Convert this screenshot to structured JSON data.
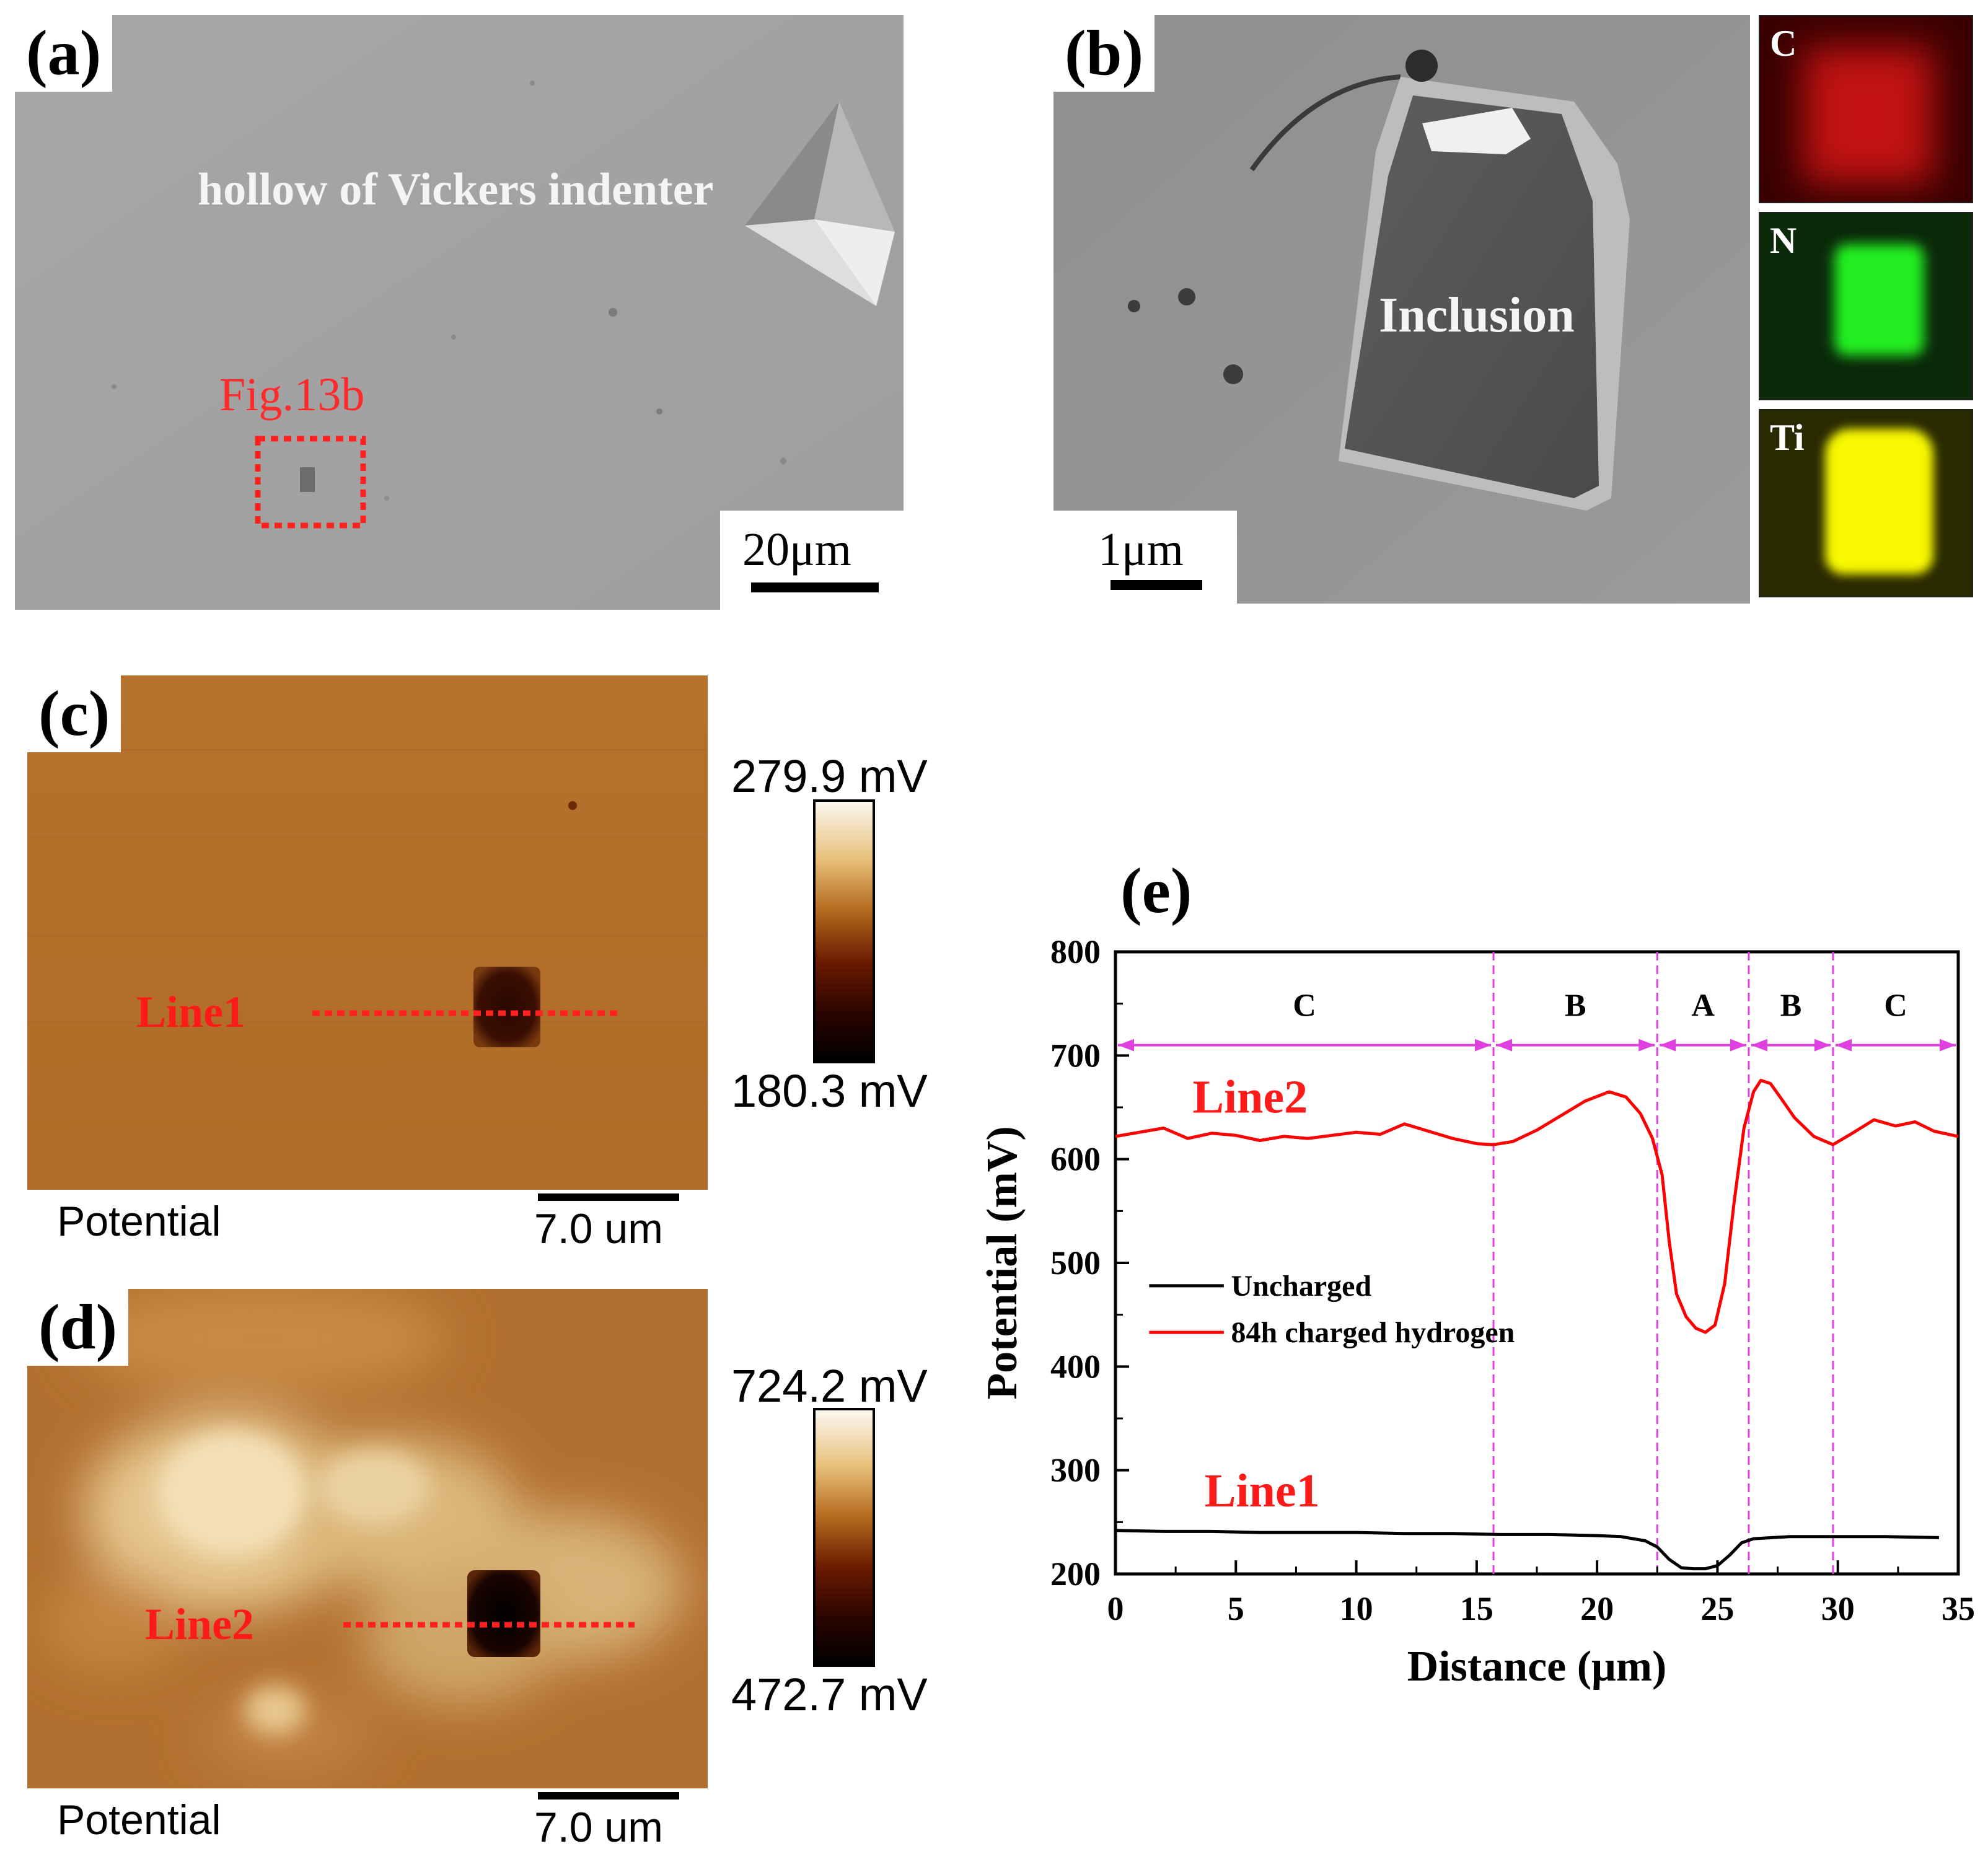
{
  "panels": {
    "a": {
      "label": "(a)",
      "indent_label": "hollow of Vickers indenter",
      "fig_ref": "Fig.13b",
      "scale": "20μm"
    },
    "b": {
      "label": "(b)",
      "inclusion_label": "Inclusion",
      "scale": "1μm",
      "eds_maps": [
        {
          "element": "C",
          "color": "#e01010"
        },
        {
          "element": "N",
          "color": "#20e020"
        },
        {
          "element": "Ti",
          "color": "#f0f000"
        }
      ]
    },
    "c": {
      "label": "(c)",
      "line_label": "Line1",
      "colorbar_max": "279.9 mV",
      "colorbar_min": "180.3 mV",
      "caption": "Potential",
      "scale": "7.0 um"
    },
    "d": {
      "label": "(d)",
      "line_label": "Line2",
      "colorbar_max": "724.2 mV",
      "colorbar_min": "472.7 mV",
      "caption": "Potential",
      "scale": "7.0 um"
    },
    "e": {
      "label": "(e)"
    }
  },
  "chart_data": {
    "type": "line",
    "title": "",
    "xlabel": "Distance (μm)",
    "ylabel": "Potential (mV)",
    "xlim": [
      0,
      35
    ],
    "ylim": [
      200,
      800
    ],
    "xticks": [
      0,
      5,
      10,
      15,
      20,
      25,
      30,
      35
    ],
    "yticks": [
      200,
      300,
      400,
      500,
      600,
      700,
      800
    ],
    "grid": false,
    "legend_position": "middle-left",
    "region_boundaries": [
      15.7,
      22.5,
      26.3,
      29.8
    ],
    "regions": [
      {
        "label": "C",
        "from": 0,
        "to": 15.7
      },
      {
        "label": "B",
        "from": 15.7,
        "to": 22.5
      },
      {
        "label": "A",
        "from": 22.5,
        "to": 26.3
      },
      {
        "label": "B",
        "from": 26.3,
        "to": 29.8
      },
      {
        "label": "C",
        "from": 29.8,
        "to": 35
      }
    ],
    "series": [
      {
        "name": "Uncharged",
        "line_label": "Line1",
        "color": "#000000",
        "x": [
          0,
          2,
          4,
          6,
          8,
          10,
          12,
          14,
          16,
          18,
          20,
          21,
          22,
          22.5,
          23,
          23.5,
          24,
          24.5,
          25,
          25.5,
          26,
          26.5,
          28,
          30,
          32,
          34.2
        ],
        "y": [
          242,
          241,
          241,
          240,
          240,
          240,
          239,
          239,
          238,
          238,
          237,
          236,
          232,
          226,
          214,
          206,
          205,
          205,
          208,
          218,
          230,
          234,
          236,
          236,
          236,
          235
        ]
      },
      {
        "name": "84h charged hydrogen",
        "line_label": "Line2",
        "color": "#ff0000",
        "x": [
          0,
          1,
          2,
          3,
          4,
          5,
          6,
          7,
          8,
          9,
          10,
          11,
          12,
          13,
          14,
          15,
          15.7,
          16.5,
          17.5,
          18.5,
          19.5,
          20.5,
          21.2,
          21.8,
          22.3,
          22.7,
          23.0,
          23.3,
          23.7,
          24.1,
          24.5,
          24.9,
          25.3,
          25.7,
          26.1,
          26.5,
          26.8,
          27.2,
          27.6,
          28.2,
          29.0,
          29.8,
          30.6,
          31.5,
          32.4,
          33.2,
          34.0,
          35.0
        ],
        "y": [
          622,
          626,
          630,
          620,
          625,
          623,
          618,
          622,
          620,
          623,
          626,
          624,
          634,
          627,
          620,
          615,
          614,
          617,
          628,
          642,
          656,
          665,
          660,
          644,
          620,
          585,
          520,
          470,
          448,
          437,
          433,
          440,
          480,
          560,
          630,
          665,
          676,
          673,
          660,
          640,
          622,
          614,
          625,
          638,
          632,
          636,
          627,
          622
        ]
      }
    ]
  }
}
